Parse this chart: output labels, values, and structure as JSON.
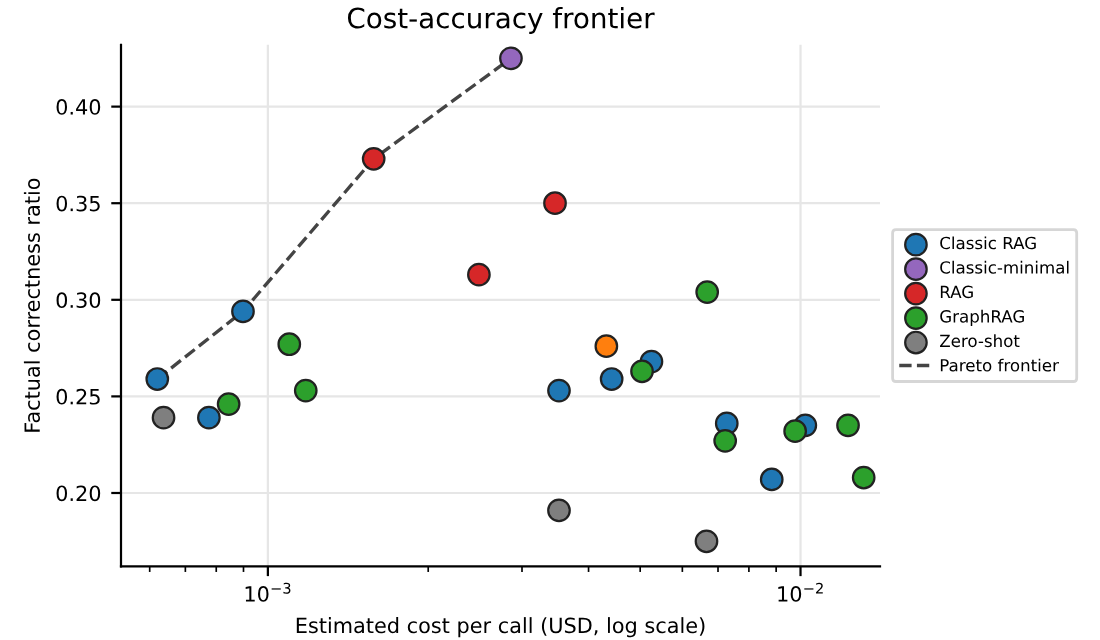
{
  "chart_data": {
    "type": "scatter",
    "title": "Cost-accuracy frontier",
    "xlabel": "Estimated cost per call (USD, log scale)",
    "ylabel": "Factual correctness ratio",
    "log": "x",
    "grid": true,
    "legend": "right",
    "marker": "circle",
    "xlim": [
      0.00053,
      0.0141
    ],
    "ylim": [
      0.162,
      0.432
    ],
    "xticks": [
      {
        "value": 0.001,
        "label": "10$^{−3}$"
      },
      {
        "value": 0.01,
        "label": "10$^{−2}$"
      }
    ],
    "yticks": [
      {
        "value": 0.2,
        "label": "0.20"
      },
      {
        "value": 0.25,
        "label": "0.25"
      },
      {
        "value": 0.3,
        "label": "0.30"
      },
      {
        "value": 0.35,
        "label": "0.35"
      },
      {
        "value": 0.4,
        "label": "0.40"
      }
    ],
    "series": [
      {
        "name": "Classic RAG",
        "color": "#1f77b4",
        "x": [
          0.00062,
          0.000775,
          0.000898,
          0.00352,
          0.00442,
          0.00525,
          0.00727,
          0.00883,
          0.01021
        ],
        "values": [
          0.259,
          0.239,
          0.294,
          0.253,
          0.259,
          0.268,
          0.236,
          0.207,
          0.235
        ]
      },
      {
        "name": "Classic-minimal",
        "color": "#9467bd",
        "x": [
          0.00286
        ],
        "values": [
          0.425
        ]
      },
      {
        "name": "RAG",
        "color": "#d62728",
        "x": [
          0.00158,
          0.00249,
          0.00346
        ],
        "values": [
          0.373,
          0.313,
          0.35
        ]
      },
      {
        "color": "#ff7f0e",
        "x": [
          0.00432
        ],
        "values": [
          0.276
        ]
      },
      {
        "name": "GraphRAG",
        "color": "#2ca02c",
        "x": [
          0.000844,
          0.001097,
          0.001178,
          0.00504,
          0.00668,
          0.00722,
          0.00977,
          0.01228,
          0.01314
        ],
        "values": [
          0.246,
          0.277,
          0.253,
          0.263,
          0.304,
          0.227,
          0.232,
          0.235,
          0.208
        ]
      },
      {
        "name": "Zero-shot",
        "color": "#7f7f7f",
        "x": [
          0.000637,
          0.00352,
          0.00666
        ],
        "values": [
          0.239,
          0.191,
          0.175
        ]
      },
      {
        "name": "Pareto frontier",
        "type": "line",
        "color": "#444444",
        "line_style": "dashed",
        "marker": "none",
        "x": [
          0.00062,
          0.000898,
          0.00158,
          0.00286
        ],
        "values": [
          0.259,
          0.294,
          0.373,
          0.425
        ]
      }
    ]
  }
}
